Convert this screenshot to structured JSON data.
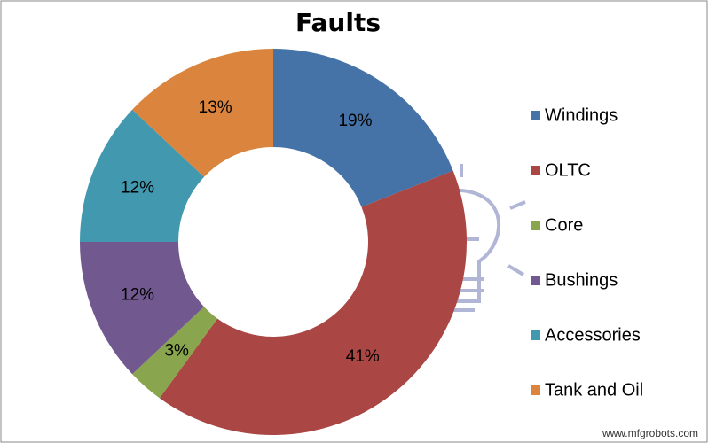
{
  "chart_data": {
    "type": "pie",
    "title": "Faults",
    "categories": [
      "Windings",
      "OLTC",
      "Core",
      "Bushings",
      "Accessories",
      "Tank and Oil"
    ],
    "values": [
      19,
      41,
      3,
      12,
      12,
      13
    ],
    "value_labels": [
      "19%",
      "41%",
      "3%",
      "12%",
      "12%",
      "13%"
    ],
    "colors": [
      "#4572a7",
      "#aa4643",
      "#89a54e",
      "#71588f",
      "#4198af",
      "#db843d"
    ],
    "legend": "right"
  },
  "watermark": "www.mfgrobots.com"
}
